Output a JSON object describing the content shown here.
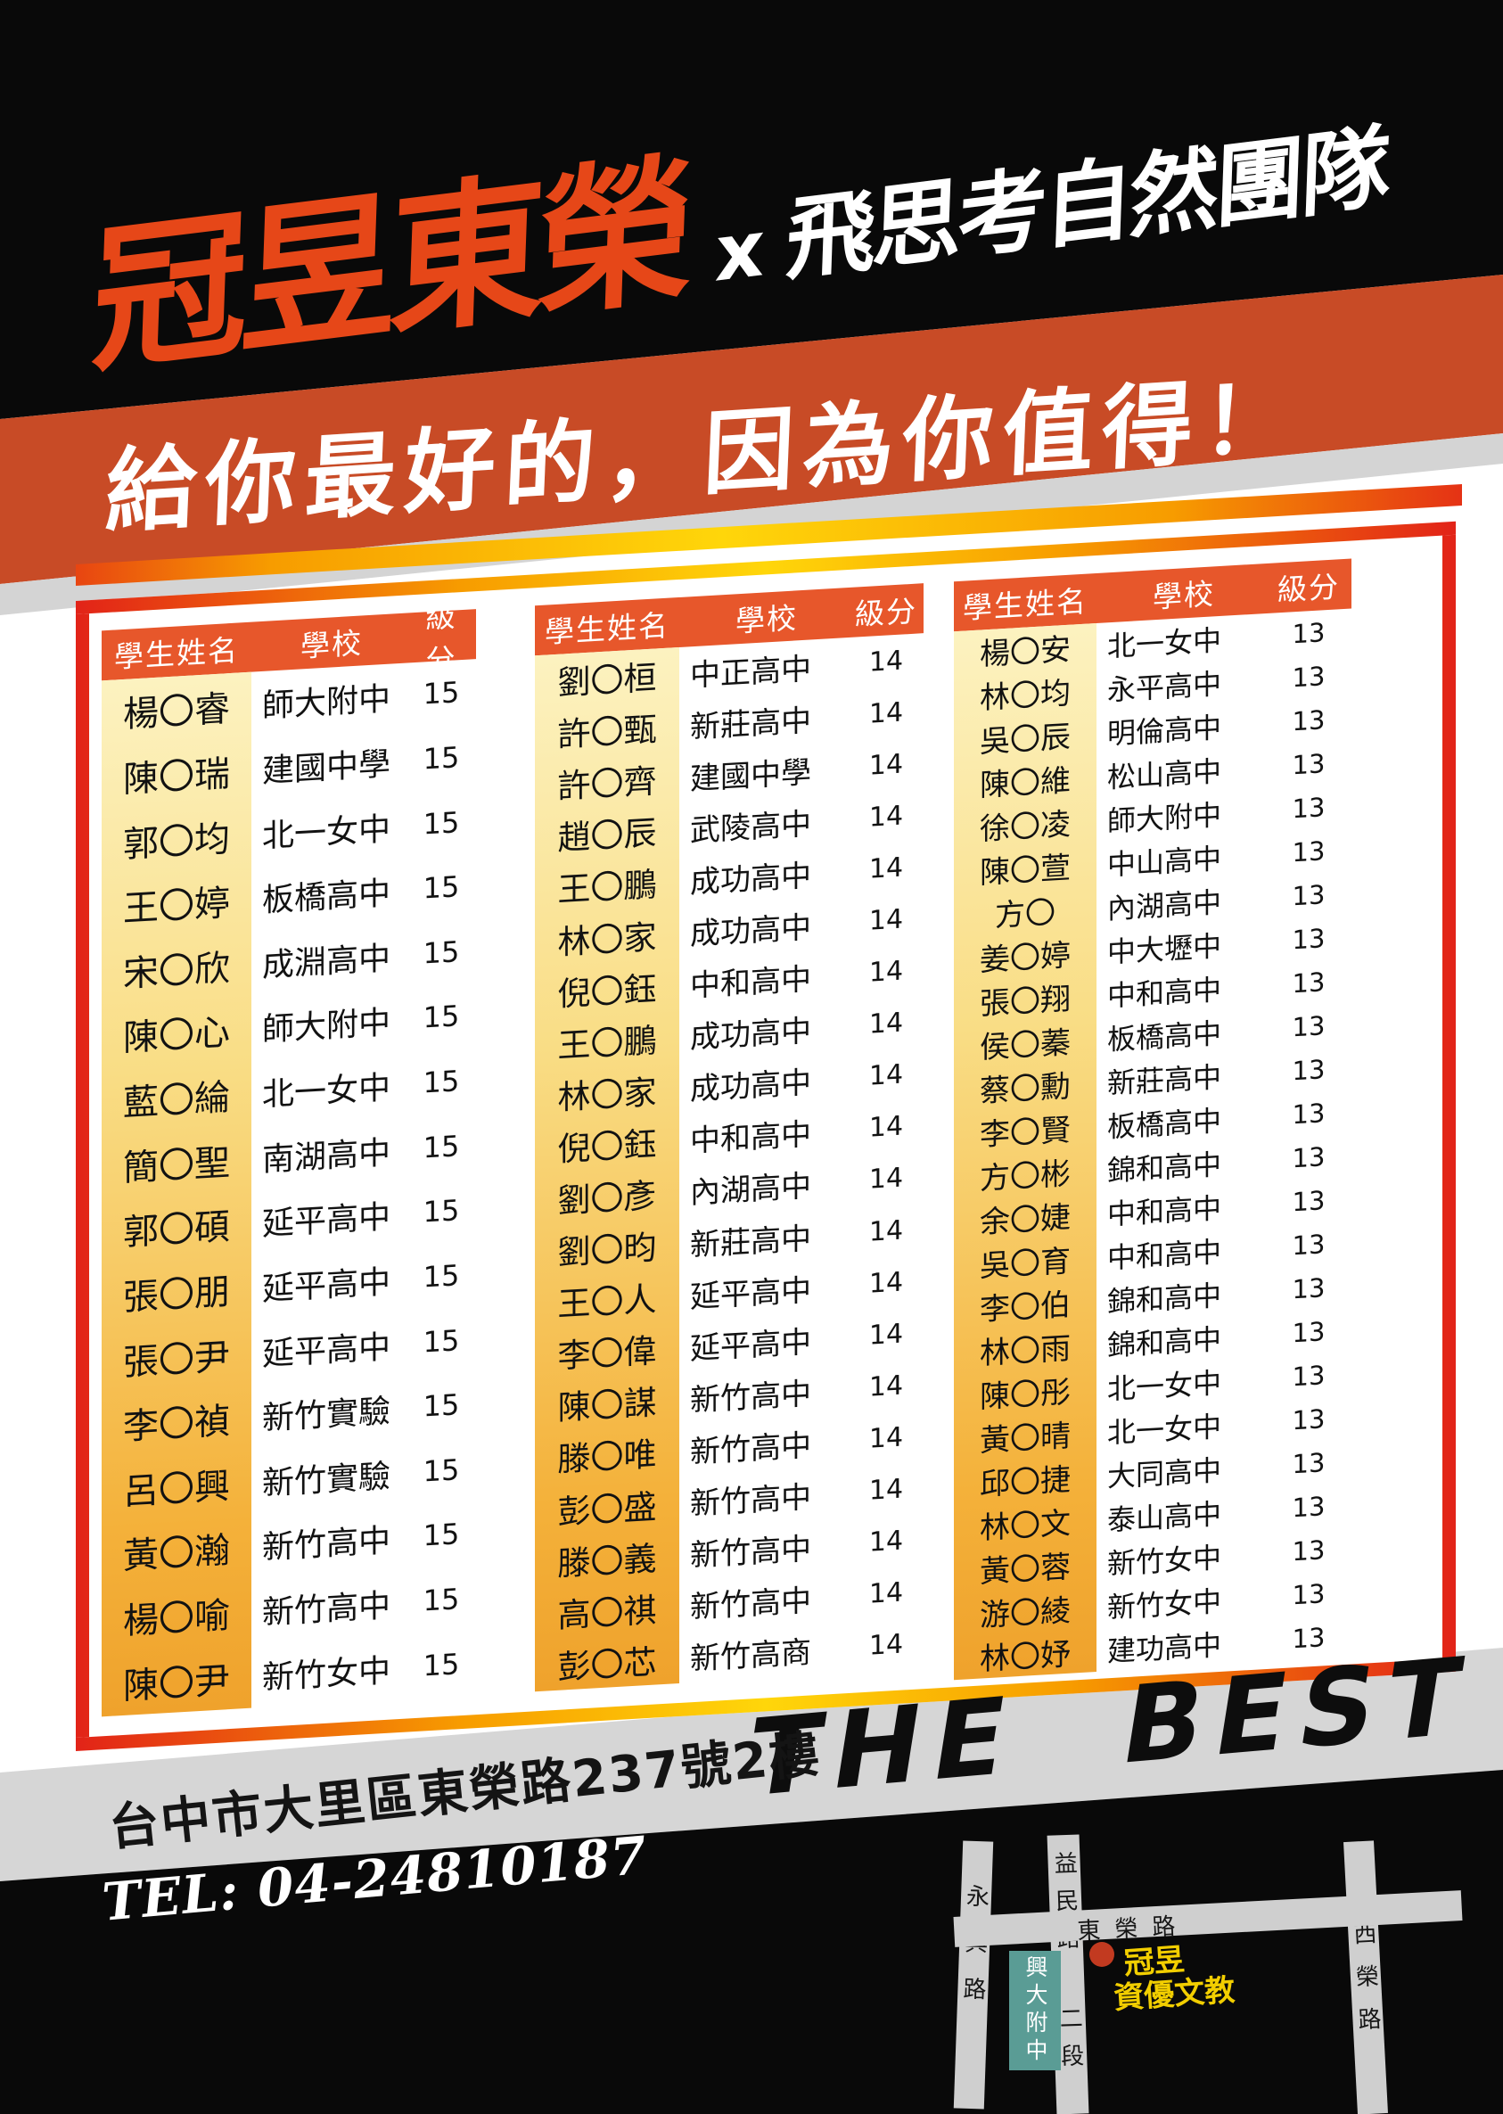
{
  "poster": {
    "brand": "冠昱東榮",
    "collab_x": "x",
    "partner": "飛思考自然團隊",
    "slogan": "給你最好的，因為你值得！",
    "tagline": "THE BEST",
    "address": "台中市大里區東榮路237號2樓",
    "tel": "TEL: 04-24810187"
  },
  "colors": {
    "brand_orange": "#e64718",
    "banner_orange": "#c84b26",
    "header_orange": "#e7572b",
    "gold_top": "#fcf2c0",
    "gold_bottom": "#efa22c",
    "frame_red": "#e22318",
    "frame_yellow": "#ffd60a",
    "map_landmark_teal": "#5a9c95",
    "map_marker_red": "#c23a20",
    "map_marker_text_yellow": "#f2ce00"
  },
  "results_table": {
    "headers": {
      "name": "學生姓名",
      "school": "學校",
      "score": "級分"
    },
    "groups": [
      [
        {
          "name": "楊〇睿",
          "school": "師大附中",
          "score": "15"
        },
        {
          "name": "陳〇瑞",
          "school": "建國中學",
          "score": "15"
        },
        {
          "name": "郭〇均",
          "school": "北一女中",
          "score": "15"
        },
        {
          "name": "王〇婷",
          "school": "板橋高中",
          "score": "15"
        },
        {
          "name": "宋〇欣",
          "school": "成淵高中",
          "score": "15"
        },
        {
          "name": "陳〇心",
          "school": "師大附中",
          "score": "15"
        },
        {
          "name": "藍〇綸",
          "school": "北一女中",
          "score": "15"
        },
        {
          "name": "簡〇聖",
          "school": "南湖高中",
          "score": "15"
        },
        {
          "name": "郭〇碩",
          "school": "延平高中",
          "score": "15"
        },
        {
          "name": "張〇朋",
          "school": "延平高中",
          "score": "15"
        },
        {
          "name": "張〇尹",
          "school": "延平高中",
          "score": "15"
        },
        {
          "name": "李〇禎",
          "school": "新竹實驗",
          "score": "15"
        },
        {
          "name": "呂〇興",
          "school": "新竹實驗",
          "score": "15"
        },
        {
          "name": "黃〇瀚",
          "school": "新竹高中",
          "score": "15"
        },
        {
          "name": "楊〇喻",
          "school": "新竹高中",
          "score": "15"
        },
        {
          "name": "陳〇尹",
          "school": "新竹女中",
          "score": "15"
        }
      ],
      [
        {
          "name": "劉〇桓",
          "school": "中正高中",
          "score": "14"
        },
        {
          "name": "許〇甄",
          "school": "新莊高中",
          "score": "14"
        },
        {
          "name": "許〇齊",
          "school": "建國中學",
          "score": "14"
        },
        {
          "name": "趙〇辰",
          "school": "武陵高中",
          "score": "14"
        },
        {
          "name": "王〇鵬",
          "school": "成功高中",
          "score": "14"
        },
        {
          "name": "林〇家",
          "school": "成功高中",
          "score": "14"
        },
        {
          "name": "倪〇鈺",
          "school": "中和高中",
          "score": "14"
        },
        {
          "name": "王〇鵬",
          "school": "成功高中",
          "score": "14"
        },
        {
          "name": "林〇家",
          "school": "成功高中",
          "score": "14"
        },
        {
          "name": "倪〇鈺",
          "school": "中和高中",
          "score": "14"
        },
        {
          "name": "劉〇彥",
          "school": "內湖高中",
          "score": "14"
        },
        {
          "name": "劉〇昀",
          "school": "新莊高中",
          "score": "14"
        },
        {
          "name": "王〇人",
          "school": "延平高中",
          "score": "14"
        },
        {
          "name": "李〇偉",
          "school": "延平高中",
          "score": "14"
        },
        {
          "name": "陳〇謀",
          "school": "新竹高中",
          "score": "14"
        },
        {
          "name": "滕〇唯",
          "school": "新竹高中",
          "score": "14"
        },
        {
          "name": "彭〇盛",
          "school": "新竹高中",
          "score": "14"
        },
        {
          "name": "滕〇義",
          "school": "新竹高中",
          "score": "14"
        },
        {
          "name": "高〇祺",
          "school": "新竹高中",
          "score": "14"
        },
        {
          "name": "彭〇芯",
          "school": "新竹高商",
          "score": "14"
        }
      ],
      [
        {
          "name": "楊〇安",
          "school": "北一女中",
          "score": "13"
        },
        {
          "name": "林〇均",
          "school": "永平高中",
          "score": "13"
        },
        {
          "name": "吳〇辰",
          "school": "明倫高中",
          "score": "13"
        },
        {
          "name": "陳〇維",
          "school": "松山高中",
          "score": "13"
        },
        {
          "name": "徐〇凌",
          "school": "師大附中",
          "score": "13"
        },
        {
          "name": "陳〇萱",
          "school": "中山高中",
          "score": "13"
        },
        {
          "name": "方〇",
          "school": "內湖高中",
          "score": "13"
        },
        {
          "name": "姜〇婷",
          "school": "中大壢中",
          "score": "13"
        },
        {
          "name": "張〇翔",
          "school": "中和高中",
          "score": "13"
        },
        {
          "name": "侯〇蓁",
          "school": "板橋高中",
          "score": "13"
        },
        {
          "name": "蔡〇勳",
          "school": "新莊高中",
          "score": "13"
        },
        {
          "name": "李〇賢",
          "school": "板橋高中",
          "score": "13"
        },
        {
          "name": "方〇彬",
          "school": "錦和高中",
          "score": "13"
        },
        {
          "name": "余〇婕",
          "school": "中和高中",
          "score": "13"
        },
        {
          "name": "吳〇育",
          "school": "中和高中",
          "score": "13"
        },
        {
          "name": "李〇伯",
          "school": "錦和高中",
          "score": "13"
        },
        {
          "name": "林〇雨",
          "school": "錦和高中",
          "score": "13"
        },
        {
          "name": "陳〇彤",
          "school": "北一女中",
          "score": "13"
        },
        {
          "name": "黃〇晴",
          "school": "北一女中",
          "score": "13"
        },
        {
          "name": "邱〇捷",
          "school": "大同高中",
          "score": "13"
        },
        {
          "name": "林〇文",
          "school": "泰山高中",
          "score": "13"
        },
        {
          "name": "黃〇蓉",
          "school": "新竹女中",
          "score": "13"
        },
        {
          "name": "游〇綾",
          "school": "新竹女中",
          "score": "13"
        },
        {
          "name": "林〇妤",
          "school": "建功高中",
          "score": "13"
        }
      ]
    ]
  },
  "map": {
    "road_left": "永興路",
    "road_mid_top": "益民路",
    "road_mid_bottom": "二段",
    "road_horizontal": "東榮路",
    "road_right": "西榮路",
    "landmark": "興大附中",
    "marker_line1": "冠昱",
    "marker_line2": "資優文教"
  }
}
